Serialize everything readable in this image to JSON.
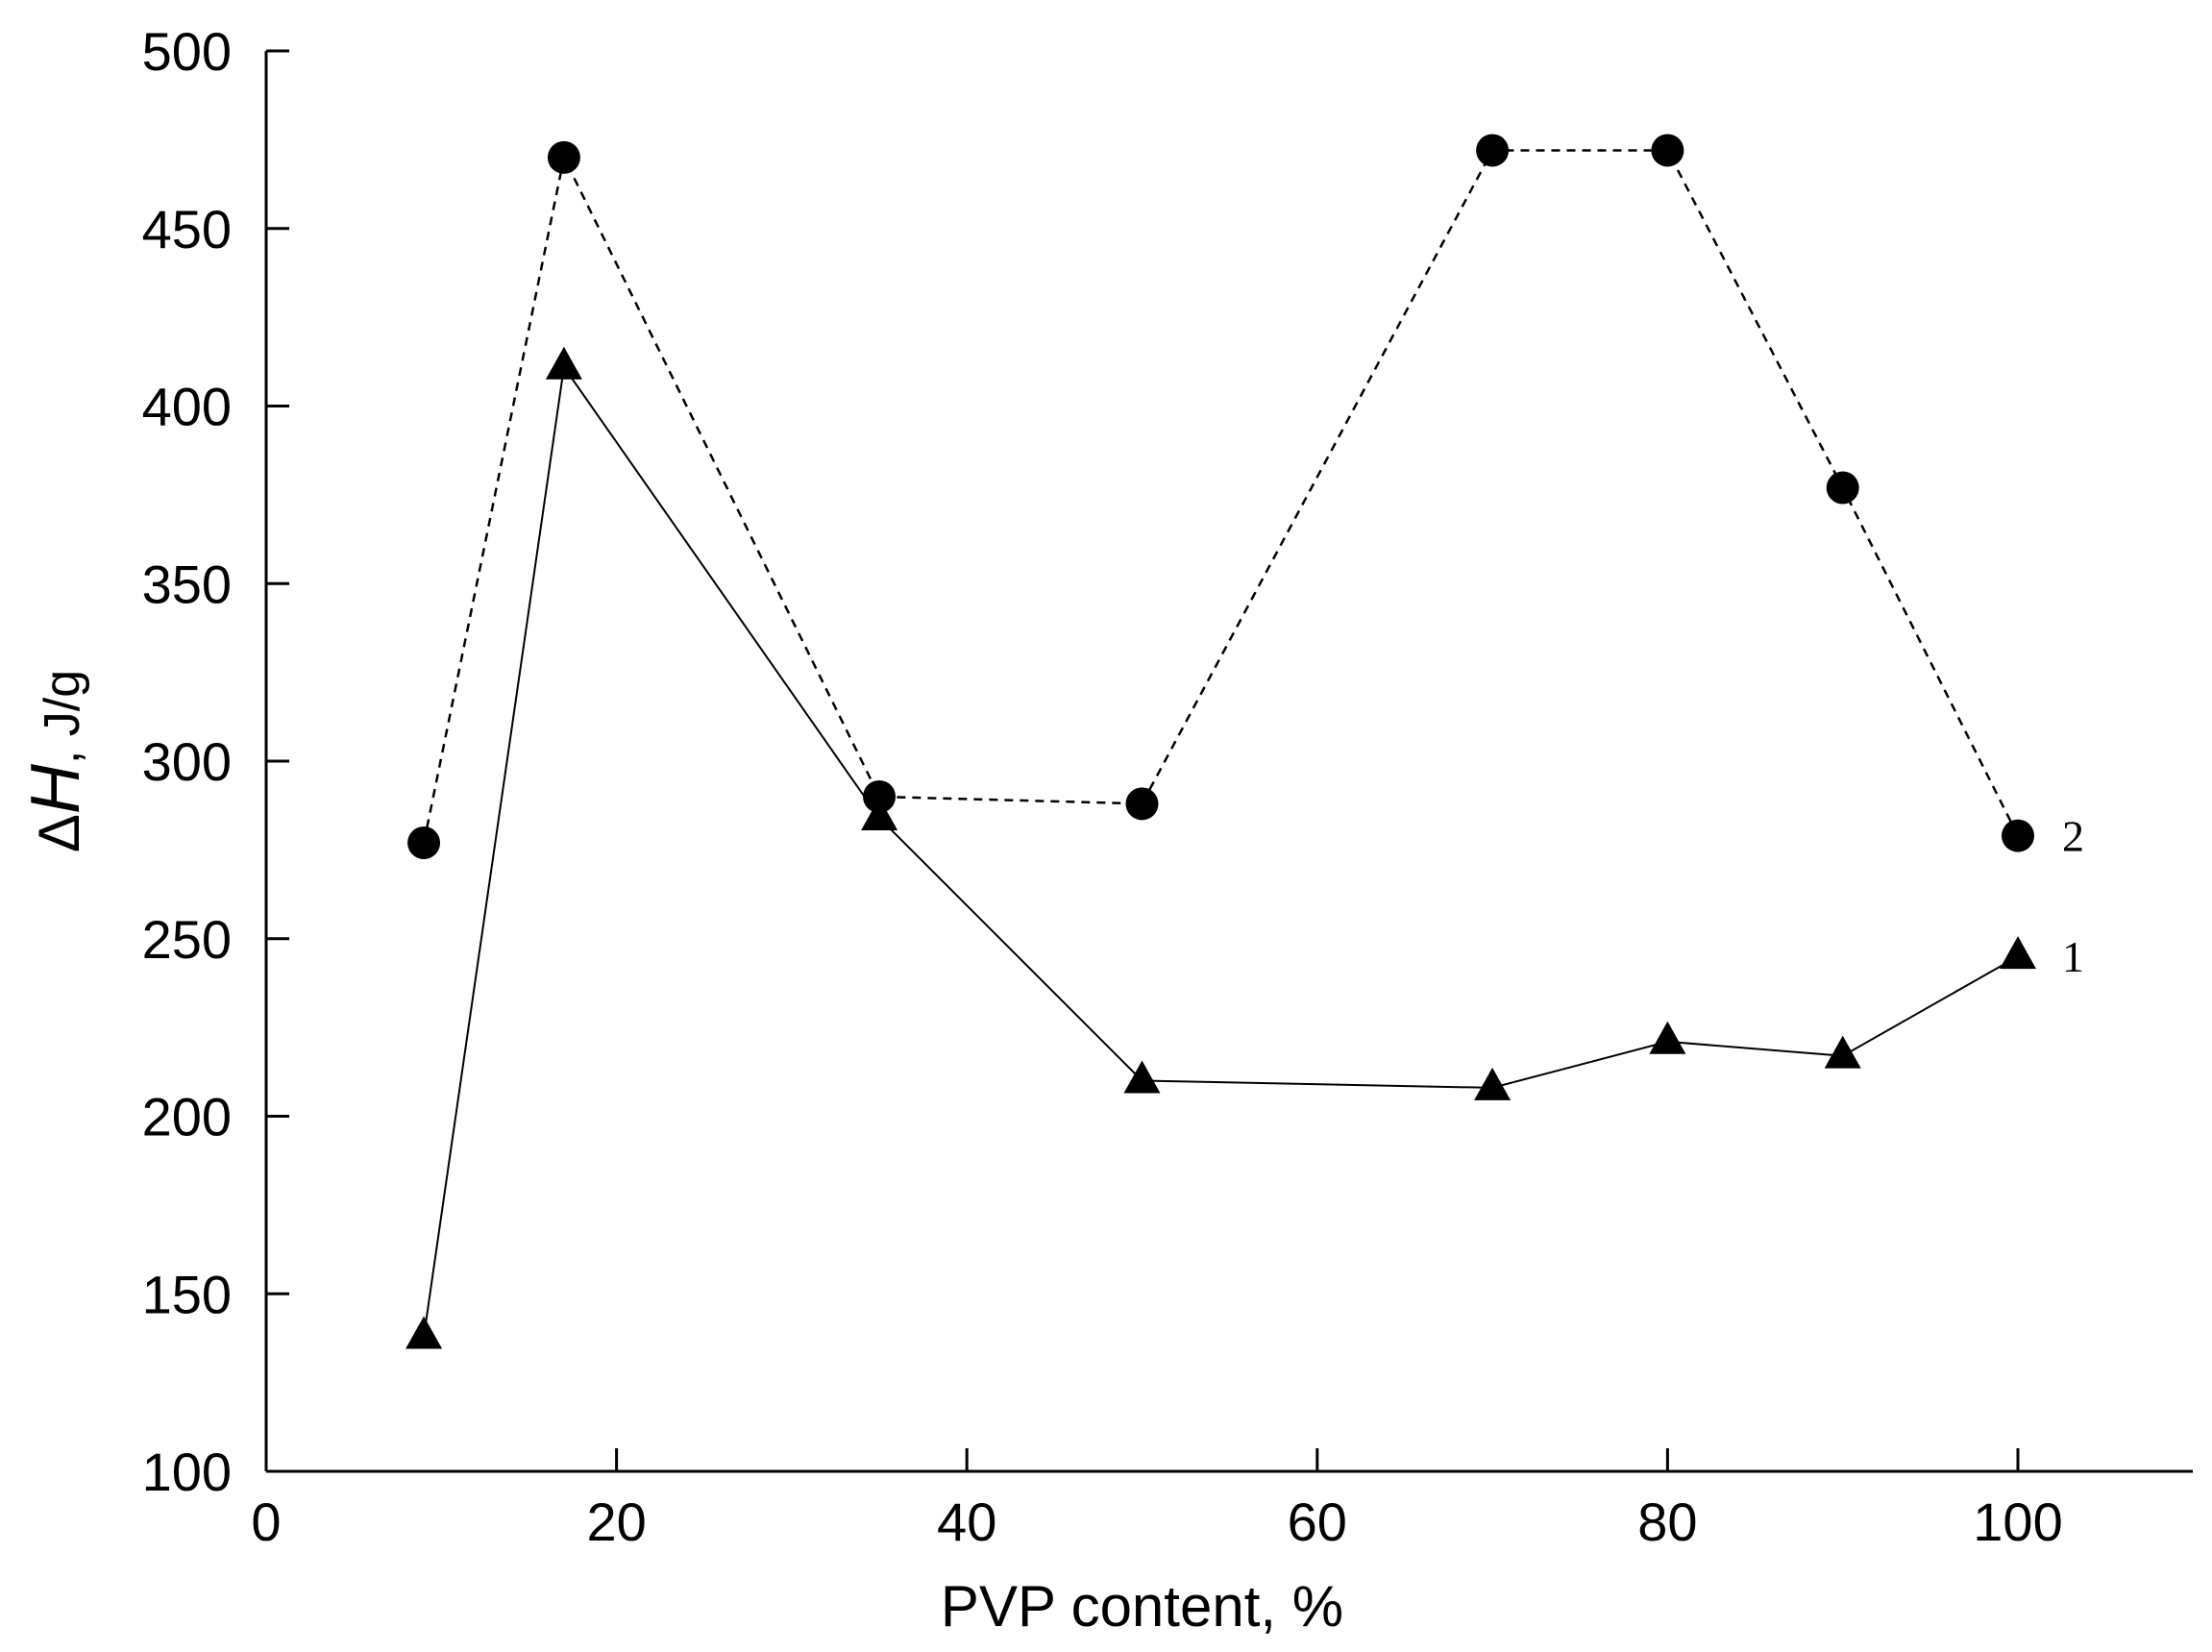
{
  "chart_data": {
    "type": "line",
    "title": "",
    "xlabel": "PVP content, %",
    "ylabel": {
      "symbol": "Δ",
      "variable": "H",
      "unit": ", J/g"
    },
    "xlim": [
      0,
      110
    ],
    "ylim": [
      100,
      500
    ],
    "x_ticks": [
      0,
      20,
      40,
      60,
      80,
      100
    ],
    "y_ticks": [
      100,
      150,
      200,
      250,
      300,
      350,
      400,
      450,
      500
    ],
    "grid": false,
    "legend": "none",
    "series": [
      {
        "label": "1",
        "marker": "triangle",
        "line_style": "solid",
        "color": "#000000",
        "x": [
          9,
          17,
          35,
          50,
          70,
          80,
          90,
          100
        ],
        "y": [
          138,
          411,
          284,
          210,
          208,
          221,
          217,
          245
        ]
      },
      {
        "label": "2",
        "marker": "circle",
        "line_style": "dashed",
        "color": "#000000",
        "x": [
          9,
          17,
          35,
          50,
          70,
          80,
          90,
          100
        ],
        "y": [
          277,
          470,
          290,
          288,
          472,
          472,
          377,
          279
        ]
      }
    ]
  }
}
